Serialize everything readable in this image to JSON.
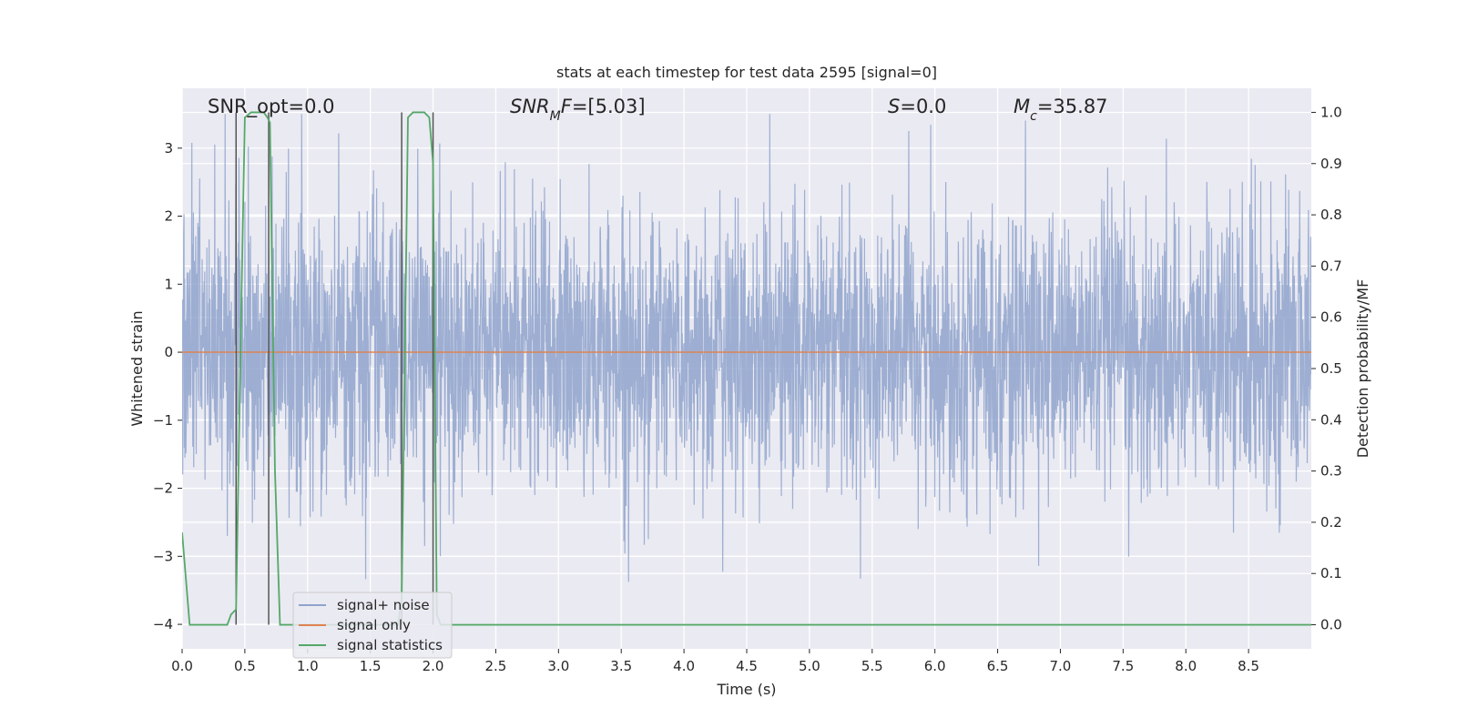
{
  "chart_data": {
    "type": "line",
    "title": "stats at each timestep for test data 2595 [signal=0]",
    "xlabel": "Time (s)",
    "ylabel": "Whitened strain",
    "y2label": "Detection probability/MF",
    "xlim": [
      0.0,
      9.0
    ],
    "ylim": [
      -4.36,
      3.88
    ],
    "y2lim": [
      -0.047,
      1.047
    ],
    "xticks": [
      "0.0",
      "0.5",
      "1.0",
      "1.5",
      "2.0",
      "2.5",
      "3.0",
      "3.5",
      "4.0",
      "4.5",
      "5.0",
      "5.5",
      "6.0",
      "6.5",
      "7.0",
      "7.5",
      "8.0",
      "8.5"
    ],
    "yticks": [
      "3",
      "2",
      "1",
      "0",
      "−1",
      "−2",
      "−3",
      "−4"
    ],
    "y2ticks": [
      "1.0",
      "0.9",
      "0.8",
      "0.7",
      "0.6",
      "0.5",
      "0.4",
      "0.3",
      "0.2",
      "0.1",
      "0.0"
    ],
    "grid": true,
    "legend_placement": "lower-left",
    "colors": {
      "background": "#eaeaf2",
      "noise": "#8fa3cc",
      "signal": "#dd8452",
      "stats": "#55a868",
      "detection_lines": "#555555"
    },
    "series": [
      {
        "name": "signal+ noise",
        "kind": "noise",
        "noise_sigma": 1.0,
        "envelope": [
          -4.0,
          3.5
        ]
      },
      {
        "name": "signal only",
        "kind": "constant",
        "value": 0.0
      },
      {
        "name": "signal statistics",
        "axis": "right",
        "x": [
          0.0,
          0.06,
          0.12,
          0.18,
          0.24,
          0.3,
          0.36,
          0.39,
          0.43,
          0.47,
          0.5,
          0.55,
          0.6,
          0.65,
          0.68,
          0.7,
          0.74,
          0.78,
          0.82,
          0.9,
          1.0,
          1.1,
          1.2,
          1.3,
          1.4,
          1.5,
          1.6,
          1.7,
          1.72,
          1.75,
          1.8,
          1.84,
          1.88,
          1.93,
          1.97,
          2.0,
          2.03,
          2.06,
          2.1,
          2.2,
          2.5,
          3.0,
          4.0,
          5.0,
          6.0,
          7.0,
          8.0,
          9.0
        ],
        "y": [
          0.18,
          0.0,
          0.0,
          0.0,
          0.0,
          0.0,
          0.0,
          0.02,
          0.03,
          0.6,
          0.99,
          1.0,
          1.0,
          1.0,
          0.99,
          0.98,
          0.3,
          0.0,
          0.0,
          0.0,
          0.0,
          0.0,
          0.0,
          0.0,
          0.0,
          0.0,
          0.0,
          0.0,
          0.0,
          0.05,
          0.99,
          1.0,
          1.0,
          1.0,
          0.99,
          0.9,
          0.02,
          0.0,
          0.0,
          0.0,
          0.0,
          0.0,
          0.0,
          0.0,
          0.0,
          0.0,
          0.0,
          0.0
        ]
      }
    ],
    "detection_lines_x": [
      0.43,
      0.69,
      1.75,
      2.0
    ],
    "annotations": [
      {
        "id": "snr-opt",
        "parts": [
          {
            "t": "SNR_opt=0.0",
            "i": false
          }
        ]
      },
      {
        "id": "snr-mf",
        "parts": [
          {
            "t": "SNR",
            "i": true
          },
          {
            "t": "M",
            "i": true,
            "sub": true
          },
          {
            "t": "F",
            "i": true
          },
          {
            "t": "=[5.03]",
            "i": false
          }
        ]
      },
      {
        "id": "s-stat",
        "parts": [
          {
            "t": "S",
            "i": true
          },
          {
            "t": "=0.0",
            "i": false
          }
        ]
      },
      {
        "id": "mc",
        "parts": [
          {
            "t": "M",
            "i": true
          },
          {
            "t": "c",
            "i": true,
            "sub": true
          },
          {
            "t": "=35.87",
            "i": false
          }
        ]
      }
    ]
  }
}
